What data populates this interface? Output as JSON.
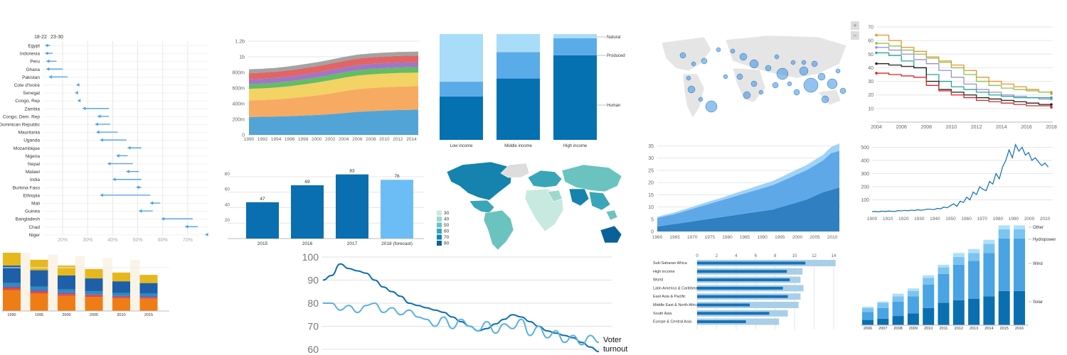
{
  "colors": {
    "blue_dark": "#0571b0",
    "blue_mid": "#3a8fd0",
    "blue_light": "#92c5f0",
    "blue_pale": "#a8d8f5",
    "arrow": "#4a9ee8",
    "grid": "#e6e6e6",
    "axis_text": "#777777"
  },
  "chart_data": [
    {
      "id": "dumbbell",
      "type": "dumbbell",
      "legend": [
        "18-22",
        "23-30"
      ],
      "x_ticks": [
        "20%",
        "30%",
        "40%",
        "50%",
        "60%",
        "70%"
      ],
      "xlim": [
        12,
        78
      ],
      "rows": [
        {
          "label": "Egypt",
          "start": 15,
          "end": 13
        },
        {
          "label": "Indonesia",
          "start": 16,
          "end": 13
        },
        {
          "label": "Peru",
          "start": 17.5,
          "end": 13.5
        },
        {
          "label": "Ghana",
          "start": 20,
          "end": 13.5
        },
        {
          "label": "Pakistan",
          "start": 22,
          "end": 14.5
        },
        {
          "label": "Cote d'Ivoire",
          "start": 26.5,
          "end": 25.5
        },
        {
          "label": "Senegal",
          "start": 26,
          "end": 25
        },
        {
          "label": "Congo, Rep",
          "start": 27,
          "end": 26
        },
        {
          "label": "Zambia",
          "start": 38.5,
          "end": 28
        },
        {
          "label": "Congo, Dem. Rep",
          "start": 38.5,
          "end": 34
        },
        {
          "label": "Dominican Republic",
          "start": 39,
          "end": 33
        },
        {
          "label": "Mauritania",
          "start": 42,
          "end": 33.5
        },
        {
          "label": "Uganda",
          "start": 45.5,
          "end": 35
        },
        {
          "label": "Mozambique",
          "start": 51.5,
          "end": 46
        },
        {
          "label": "Nigeria",
          "start": 46,
          "end": 41.5
        },
        {
          "label": "Nepal",
          "start": 48,
          "end": 38
        },
        {
          "label": "Malawi",
          "start": 50.5,
          "end": 45.5
        },
        {
          "label": "India",
          "start": 51.5,
          "end": 40
        },
        {
          "label": "Burkina Faso",
          "start": 51.5,
          "end": 49.5
        },
        {
          "label": "Ethiopia",
          "start": 55,
          "end": 35
        },
        {
          "label": "Mali",
          "start": 59,
          "end": 55
        },
        {
          "label": "Guinea",
          "start": 56,
          "end": 50.5
        },
        {
          "label": "Bangladesh",
          "start": 72,
          "end": 59.5
        },
        {
          "label": "Chad",
          "start": 74,
          "end": 69
        },
        {
          "label": "Niger",
          "start": 77.5,
          "end": 77
        }
      ]
    },
    {
      "id": "stacked-area",
      "type": "area",
      "y_ticks": [
        "0",
        "200m",
        "400m",
        "600m",
        "800m",
        "1b",
        "1.2b"
      ],
      "ylim": [
        0,
        1200
      ],
      "x": [
        1990,
        1992,
        1994,
        1996,
        1998,
        2000,
        2002,
        2004,
        2006,
        2008,
        2010,
        2012,
        2014,
        2015
      ],
      "x_ticks": [
        "1990",
        "1992",
        "1994",
        "1996",
        "1998",
        "2000",
        "2002",
        "2004",
        "2006",
        "2008",
        "2010",
        "2012",
        "2014"
      ],
      "series": [
        {
          "color": "#4a9fd4",
          "values": [
            230,
            232,
            235,
            240,
            248,
            255,
            265,
            280,
            295,
            305,
            312,
            318,
            322,
            324
          ]
        },
        {
          "color": "#f7a55a",
          "values": [
            210,
            215,
            220,
            228,
            238,
            250,
            265,
            280,
            290,
            295,
            298,
            300,
            300,
            300
          ]
        },
        {
          "color": "#f1d15c",
          "values": [
            150,
            150,
            152,
            155,
            160,
            165,
            170,
            172,
            175,
            175,
            175,
            175,
            175,
            175
          ]
        },
        {
          "color": "#5cb85c",
          "values": [
            60,
            60,
            62,
            63,
            64,
            65,
            67,
            68,
            69,
            70,
            70,
            70,
            70,
            70
          ]
        },
        {
          "color": "#9b6fc4",
          "values": [
            60,
            60,
            60,
            61,
            61,
            62,
            62,
            63,
            63,
            63,
            63,
            63,
            63,
            63
          ]
        },
        {
          "color": "#e05d5d",
          "values": [
            80,
            80,
            80,
            81,
            82,
            83,
            84,
            85,
            85,
            85,
            85,
            85,
            85,
            85
          ]
        },
        {
          "color": "#9e9e9e",
          "values": [
            50,
            50,
            50,
            50,
            50,
            50,
            50,
            50,
            50,
            50,
            50,
            50,
            50,
            50
          ]
        }
      ]
    },
    {
      "id": "wealth-composition",
      "type": "bar",
      "categories": [
        "Low income",
        "Middle income",
        "High income"
      ],
      "series": [
        {
          "name": "Human",
          "color": "#0571b0",
          "values": [
            41,
            58,
            80
          ]
        },
        {
          "name": "Produced",
          "color": "#5aace8",
          "values": [
            14,
            25,
            16
          ]
        },
        {
          "name": "Natural",
          "color": "#a8dcf8",
          "values": [
            45,
            17,
            4
          ]
        }
      ]
    },
    {
      "id": "forecast-bars",
      "type": "bar",
      "categories": [
        "2015",
        "2016",
        "2017",
        "2018 (forecast)"
      ],
      "values": [
        47,
        69,
        83,
        76
      ],
      "y_ticks": [
        "20",
        "40",
        "60",
        "80"
      ],
      "ylim": [
        0,
        90
      ]
    },
    {
      "id": "small-stacked",
      "type": "bar",
      "categories": [
        "1990",
        "1995",
        "2000",
        "2005",
        "2010",
        "2015"
      ],
      "series": [
        {
          "color": "#ef7d16",
          "values": [
            36,
            30,
            26,
            24,
            22,
            21
          ]
        },
        {
          "color": "#e34a33",
          "values": [
            3,
            3,
            3,
            3,
            2,
            2
          ]
        },
        {
          "color": "#8856a7",
          "values": [
            3,
            3,
            3,
            2,
            2,
            2
          ]
        },
        {
          "color": "#2b8cbe",
          "values": [
            6,
            6,
            5,
            5,
            5,
            5
          ]
        },
        {
          "color": "#1f5fa8",
          "values": [
            30,
            28,
            24,
            22,
            20,
            18
          ]
        },
        {
          "color": "#e6b81e",
          "values": [
            22,
            18,
            17,
            16,
            15,
            14
          ]
        }
      ]
    },
    {
      "id": "voter-turnout",
      "type": "line",
      "y_ticks": [
        "60",
        "70",
        "80",
        "90",
        "100"
      ],
      "ylim": [
        58,
        102
      ],
      "annotation": "Voter turnout",
      "series": [
        {
          "color": "#0a6fb0",
          "values": [
            90,
            92,
            97,
            95,
            94,
            93,
            90,
            87,
            85,
            83,
            80,
            79,
            78,
            77,
            76,
            74,
            72,
            70,
            68,
            69,
            71,
            73,
            75,
            74,
            72,
            70,
            68,
            67,
            66,
            65,
            63,
            61,
            59
          ]
        },
        {
          "color": "#5ab0e0",
          "values": [
            80,
            80,
            77,
            79,
            76,
            79,
            80,
            76,
            78,
            75,
            77,
            74,
            73,
            70,
            74,
            69,
            73,
            70,
            68,
            72,
            67,
            71,
            69,
            73,
            66,
            70,
            65,
            68,
            63,
            66,
            62,
            66,
            63
          ]
        }
      ]
    },
    {
      "id": "line-steps",
      "type": "line",
      "x_ticks": [
        "2004",
        "2006",
        "2008",
        "2010",
        "2012",
        "2014",
        "2016",
        "2018"
      ],
      "y_ticks": [
        "10",
        "20",
        "30",
        "40",
        "50",
        "60",
        "70"
      ],
      "ylim": [
        0,
        70
      ],
      "xlim": [
        2004,
        2018
      ],
      "series": [
        {
          "color": "#f28e2b",
          "values": [
            64,
            60,
            55,
            52,
            48,
            45,
            42,
            38,
            33,
            30,
            28,
            26,
            24,
            22,
            21
          ]
        },
        {
          "color": "#8bc34a",
          "values": [
            58,
            56,
            53,
            50,
            47,
            44,
            40,
            35,
            30,
            27,
            25,
            24,
            23,
            22,
            22
          ]
        },
        {
          "color": "#9b8fd4",
          "values": [
            55,
            53,
            50,
            46,
            43,
            38,
            33,
            28,
            24,
            22,
            20,
            19,
            18,
            17,
            17
          ]
        },
        {
          "color": "#26a69a",
          "values": [
            51,
            49,
            45,
            40,
            35,
            30,
            26,
            24,
            22,
            20,
            19,
            18,
            18,
            18,
            18
          ]
        },
        {
          "color": "#222222",
          "values": [
            43,
            42,
            41,
            40,
            30,
            24,
            22,
            20,
            18,
            17,
            16,
            15,
            14,
            13,
            13
          ]
        },
        {
          "color": "#d62728",
          "values": [
            36,
            35,
            34,
            33,
            27,
            23,
            20,
            18,
            16,
            15,
            14,
            13,
            12,
            12,
            11
          ]
        }
      ]
    },
    {
      "id": "area-1960",
      "type": "area",
      "x_ticks": [
        "1960",
        "1965",
        "1970",
        "1975",
        "1980",
        "1985",
        "1990",
        "1995",
        "2000",
        "2005",
        "2010"
      ],
      "y_ticks": [
        "0",
        "5",
        "10",
        "15",
        "20",
        "25",
        "30",
        "35"
      ],
      "ylim": [
        0,
        36
      ],
      "series": [
        {
          "color": "#2f7fc1",
          "values": [
            2,
            2.5,
            3,
            3.5,
            4,
            4.5,
            5,
            5.5,
            6,
            6.5,
            7,
            7.5,
            8,
            8.5,
            9,
            10,
            11,
            12,
            13,
            14.5,
            16,
            17,
            18
          ]
        },
        {
          "color": "#5fa8e8",
          "values": [
            3.5,
            3.8,
            4,
            4.5,
            5,
            5.5,
            6,
            6.5,
            7,
            7.5,
            8,
            8.5,
            9,
            9.5,
            10,
            10.5,
            11,
            11.5,
            12,
            12.5,
            13,
            15,
            15
          ]
        },
        {
          "color": "#9fd3f7",
          "values": [
            0.5,
            0.6,
            0.7,
            0.8,
            0.8,
            0.9,
            1,
            1,
            1,
            1.2,
            1.3,
            1.4,
            1.5,
            1.6,
            1.7,
            1.8,
            1.9,
            2,
            2.1,
            2.2,
            2.3,
            2.5,
            3
          ]
        }
      ]
    },
    {
      "id": "line-1900",
      "type": "line",
      "x_ticks": [
        "1900",
        "1910",
        "1920",
        "1930",
        "1940",
        "1950",
        "1960",
        "1970",
        "1980",
        "1990",
        "2000",
        "2010"
      ],
      "y_ticks": [
        "100",
        "200",
        "300",
        "400",
        "500"
      ],
      "ylim": [
        0,
        540
      ],
      "series": [
        {
          "color": "#0a6fb0",
          "values": [
            10,
            12,
            9,
            14,
            11,
            15,
            13,
            12,
            18,
            16,
            20,
            17,
            22,
            19,
            25,
            21,
            24,
            30,
            28,
            26,
            35,
            32,
            45,
            40,
            55,
            70,
            50,
            90,
            80,
            120,
            100,
            160,
            140,
            200,
            180,
            170,
            240,
            220,
            300,
            260,
            350,
            400,
            480,
            420,
            520,
            470,
            500,
            440,
            460,
            400,
            420,
            390,
            360,
            380,
            350
          ]
        }
      ]
    },
    {
      "id": "h-bars",
      "type": "bar",
      "x_ticks": [
        "0",
        "2",
        "4",
        "6",
        "8",
        "10",
        "12",
        "14"
      ],
      "xlim": [
        0,
        14
      ],
      "categories": [
        "Sub-Saharan Africa",
        "High income",
        "World",
        "Latin America & Caribbean",
        "East Asia & Pacific",
        "Middle East & North Africa",
        "South Asia",
        "Europe & Central Asia"
      ],
      "series": [
        {
          "name": "",
          "color": "#a9cfe8",
          "values": [
            14.2,
            10.8,
            10.6,
            10.9,
            10.6,
            10.4,
            9.3,
            8.4
          ]
        },
        {
          "name": "",
          "color": "#1971b8",
          "values": [
            11.1,
            9.2,
            9.5,
            8.8,
            9.3,
            5.4,
            7.4,
            5.0
          ]
        }
      ]
    },
    {
      "id": "renewables",
      "type": "bar",
      "categories": [
        "2006",
        "2007",
        "2008",
        "2009",
        "2010",
        "2011",
        "2012",
        "2013",
        "2014",
        "2015",
        "2016"
      ],
      "series": [
        {
          "name": "Solar",
          "color": "#0a6fb0",
          "values": [
            4,
            5,
            7,
            9,
            13,
            17,
            19,
            20,
            22,
            26,
            26
          ]
        },
        {
          "name": "Wind",
          "color": "#4aa3e3",
          "values": [
            6,
            8,
            11,
            13,
            18,
            22,
            27,
            29,
            33,
            40,
            40
          ]
        },
        {
          "name": "Hydropower",
          "color": "#7cc4f0",
          "values": [
            3,
            4,
            4,
            4,
            5,
            5,
            6,
            6,
            7,
            7,
            7
          ]
        },
        {
          "name": "Other",
          "color": "#aee0fa",
          "values": [
            1,
            1,
            2,
            2,
            2,
            2,
            3,
            3,
            3,
            3,
            3
          ]
        }
      ]
    },
    {
      "id": "choropleth",
      "type": "map",
      "legend": [
        "30",
        "40",
        "50",
        "60",
        "70",
        "80"
      ],
      "legend_colors": [
        "#c7e9e0",
        "#9ed8cc",
        "#6ac3bf",
        "#3aa5b8",
        "#1583ad",
        "#0a6199"
      ]
    },
    {
      "id": "bubble-map",
      "type": "map",
      "controls": [
        "+",
        "−"
      ]
    }
  ]
}
